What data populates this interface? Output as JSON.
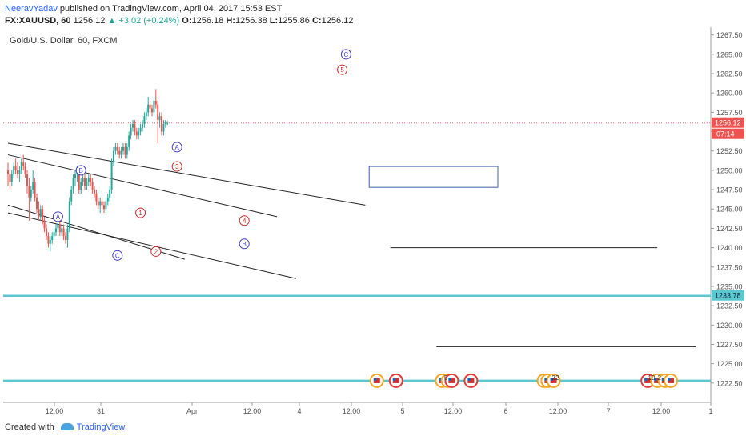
{
  "header": {
    "author": "NeeravYadav",
    "published": "published on TradingView.com, April 04, 2017 15:53 EST",
    "symbol": "FX:XAUUSD, 60",
    "last": "1256.12",
    "change": "▲ +3.02 (+0.24%)",
    "open_label": "O:",
    "open": "1256.18",
    "high_label": "H:",
    "high": "1256.38",
    "low_label": "L:",
    "low": "1255.86",
    "close_label": "C:",
    "close": "1256.12"
  },
  "chart_title": "Gold/U.S. Dollar, 60, FXCM",
  "footer": {
    "created_with": "Created with",
    "brand": "TradingView"
  },
  "chart_data": {
    "type": "candlestick",
    "ylim": [
      1220.0,
      1268.5
    ],
    "yticks": [
      "1267.50",
      "1265.00",
      "1262.50",
      "1260.00",
      "1257.50",
      "1255.00",
      "1252.50",
      "1250.00",
      "1247.50",
      "1245.00",
      "1242.50",
      "1240.00",
      "1237.50",
      "1235.00",
      "1232.50",
      "1230.00",
      "1227.50",
      "1225.00",
      "1222.50"
    ],
    "xticks": [
      "12:00",
      "31",
      "Apr",
      "12:00",
      "4",
      "12:00",
      "5",
      "12:00",
      "6",
      "12:00",
      "7",
      "12:00",
      "1"
    ],
    "last_price_label": "1256.12",
    "countdown_label": "07:14",
    "price_marker_label": "1233.78",
    "candles": [
      [
        1250.0,
        1251.0,
        1248.0,
        1249.5
      ],
      [
        1249.5,
        1250.0,
        1247.5,
        1248.5
      ],
      [
        1248.5,
        1250.0,
        1248.0,
        1249.5
      ],
      [
        1249.5,
        1251.0,
        1249.0,
        1250.5
      ],
      [
        1250.5,
        1251.5,
        1249.5,
        1250.0
      ],
      [
        1250.0,
        1251.0,
        1249.0,
        1249.5
      ],
      [
        1249.5,
        1250.5,
        1248.5,
        1250.0
      ],
      [
        1250.0,
        1251.5,
        1249.5,
        1251.0
      ],
      [
        1251.0,
        1252.0,
        1250.0,
        1250.5
      ],
      [
        1250.5,
        1251.0,
        1249.0,
        1249.5
      ],
      [
        1249.5,
        1250.0,
        1247.0,
        1248.0
      ],
      [
        1248.0,
        1249.0,
        1243.5,
        1246.5
      ],
      [
        1246.5,
        1248.0,
        1246.0,
        1247.5
      ],
      [
        1247.5,
        1250.0,
        1247.0,
        1248.5
      ],
      [
        1248.5,
        1249.0,
        1246.0,
        1246.5
      ],
      [
        1246.5,
        1247.0,
        1244.5,
        1245.0
      ],
      [
        1245.0,
        1246.0,
        1243.5,
        1244.0
      ],
      [
        1244.0,
        1245.5,
        1243.5,
        1245.0
      ],
      [
        1245.0,
        1245.5,
        1243.0,
        1243.5
      ],
      [
        1243.5,
        1244.0,
        1242.0,
        1242.5
      ],
      [
        1242.5,
        1243.0,
        1241.0,
        1241.5
      ],
      [
        1241.5,
        1242.0,
        1240.0,
        1240.5
      ],
      [
        1240.5,
        1241.5,
        1239.5,
        1241.0
      ],
      [
        1241.0,
        1242.0,
        1240.5,
        1241.5
      ],
      [
        1241.5,
        1242.5,
        1241.0,
        1242.0
      ],
      [
        1242.0,
        1243.0,
        1241.5,
        1242.5
      ],
      [
        1242.5,
        1243.5,
        1242.0,
        1243.0
      ],
      [
        1243.0,
        1243.5,
        1241.5,
        1242.0
      ],
      [
        1242.0,
        1243.0,
        1241.5,
        1242.5
      ],
      [
        1242.5,
        1243.0,
        1241.0,
        1241.5
      ],
      [
        1241.5,
        1242.0,
        1240.5,
        1241.0
      ],
      [
        1241.0,
        1243.0,
        1240.0,
        1242.5
      ],
      [
        1242.5,
        1246.5,
        1242.0,
        1246.0
      ],
      [
        1246.0,
        1248.0,
        1245.5,
        1247.5
      ],
      [
        1247.5,
        1249.5,
        1247.0,
        1249.0
      ],
      [
        1249.0,
        1250.0,
        1248.0,
        1249.5
      ],
      [
        1249.5,
        1250.5,
        1248.5,
        1250.0
      ],
      [
        1250.0,
        1250.5,
        1247.0,
        1247.5
      ],
      [
        1247.5,
        1249.0,
        1247.0,
        1248.5
      ],
      [
        1248.5,
        1249.5,
        1248.0,
        1249.0
      ],
      [
        1249.0,
        1249.5,
        1247.5,
        1248.0
      ],
      [
        1248.0,
        1249.0,
        1247.5,
        1248.5
      ],
      [
        1248.5,
        1249.5,
        1248.0,
        1249.0
      ],
      [
        1249.0,
        1249.5,
        1248.0,
        1248.5
      ],
      [
        1248.5,
        1249.0,
        1247.0,
        1247.5
      ],
      [
        1247.5,
        1248.0,
        1246.5,
        1247.0
      ],
      [
        1247.0,
        1247.5,
        1245.5,
        1246.0
      ],
      [
        1246.0,
        1246.5,
        1245.0,
        1245.5
      ],
      [
        1245.5,
        1246.5,
        1244.5,
        1246.0
      ],
      [
        1246.0,
        1246.5,
        1245.0,
        1245.5
      ],
      [
        1245.5,
        1246.0,
        1244.5,
        1245.0
      ],
      [
        1245.0,
        1246.5,
        1244.5,
        1246.0
      ],
      [
        1246.0,
        1247.0,
        1245.5,
        1246.5
      ],
      [
        1246.5,
        1248.0,
        1246.0,
        1247.5
      ],
      [
        1247.5,
        1251.5,
        1247.0,
        1251.0
      ],
      [
        1251.0,
        1253.0,
        1250.5,
        1252.5
      ],
      [
        1252.5,
        1253.5,
        1252.0,
        1253.0
      ],
      [
        1253.0,
        1253.5,
        1252.0,
        1252.5
      ],
      [
        1252.5,
        1253.0,
        1251.5,
        1252.0
      ],
      [
        1252.0,
        1253.0,
        1251.5,
        1252.5
      ],
      [
        1252.5,
        1253.5,
        1252.0,
        1253.0
      ],
      [
        1253.0,
        1253.5,
        1251.5,
        1252.0
      ],
      [
        1252.0,
        1253.5,
        1251.5,
        1253.0
      ],
      [
        1253.0,
        1255.0,
        1252.5,
        1254.5
      ],
      [
        1254.5,
        1256.0,
        1254.0,
        1255.5
      ],
      [
        1255.5,
        1256.5,
        1255.0,
        1256.0
      ],
      [
        1256.0,
        1256.5,
        1254.5,
        1255.0
      ],
      [
        1255.0,
        1255.5,
        1254.0,
        1254.5
      ],
      [
        1254.5,
        1255.5,
        1254.0,
        1255.0
      ],
      [
        1255.0,
        1256.0,
        1254.5,
        1255.5
      ],
      [
        1255.5,
        1256.5,
        1255.0,
        1256.0
      ],
      [
        1256.0,
        1257.5,
        1255.5,
        1257.0
      ],
      [
        1257.0,
        1258.0,
        1256.5,
        1257.5
      ],
      [
        1257.5,
        1259.5,
        1257.0,
        1258.5
      ],
      [
        1258.5,
        1259.0,
        1257.5,
        1258.0
      ],
      [
        1258.0,
        1258.5,
        1257.0,
        1257.5
      ],
      [
        1257.5,
        1259.5,
        1257.0,
        1259.0
      ],
      [
        1259.0,
        1260.5,
        1258.0,
        1258.5
      ],
      [
        1258.5,
        1259.0,
        1253.5,
        1256.5
      ],
      [
        1256.5,
        1257.5,
        1255.5,
        1257.0
      ],
      [
        1257.0,
        1257.5,
        1254.5,
        1255.0
      ],
      [
        1255.0,
        1256.5,
        1254.5,
        1256.0
      ],
      [
        1256.0,
        1256.5,
        1255.5,
        1256.12
      ],
      [
        1256.12,
        1256.38,
        1255.86,
        1256.12
      ]
    ],
    "wave_labels": [
      {
        "text": "B",
        "x": 38,
        "y": 1250.0,
        "color": "blue"
      },
      {
        "text": "A",
        "x": 26,
        "y": 1244.0,
        "color": "blue"
      },
      {
        "text": "C",
        "x": 57,
        "y": 1239.0,
        "color": "blue"
      },
      {
        "text": "1",
        "x": 69,
        "y": 1244.5,
        "color": "red"
      },
      {
        "text": "2",
        "x": 77,
        "y": 1239.5,
        "color": "red"
      },
      {
        "text": "A",
        "x": 88,
        "y": 1253.0,
        "color": "blue"
      },
      {
        "text": "3",
        "x": 88,
        "y": 1250.5,
        "color": "red"
      },
      {
        "text": "4",
        "x": 123,
        "y": 1243.5,
        "color": "red"
      },
      {
        "text": "B",
        "x": 123,
        "y": 1240.5,
        "color": "blue"
      },
      {
        "text": "5",
        "x": 174,
        "y": 1263.0,
        "color": "red"
      },
      {
        "text": "C",
        "x": 176,
        "y": 1265.0,
        "color": "blue"
      }
    ],
    "trend_lines": [
      {
        "x1": 0,
        "y1": 1253.5,
        "x2": 186,
        "y2": 1245.5,
        "color": "#222222"
      },
      {
        "x1": 0,
        "y1": 1252.0,
        "x2": 140,
        "y2": 1244.0,
        "color": "#222222"
      },
      {
        "x1": 0,
        "y1": 1245.5,
        "x2": 92,
        "y2": 1238.5,
        "color": "#222222"
      },
      {
        "x1": 0,
        "y1": 1244.5,
        "x2": 150,
        "y2": 1236.0,
        "color": "#222222"
      },
      {
        "x1": 199,
        "y1": 1240.0,
        "x2": 338,
        "y2": 1240.0,
        "color": "#222222"
      },
      {
        "x1": 223,
        "y1": 1227.2,
        "x2": 358,
        "y2": 1227.2,
        "color": "#222222"
      }
    ],
    "horizontal_levels": [
      {
        "y": 1233.78,
        "color": "#5bc8d1"
      },
      {
        "y": 1222.8,
        "color": "#5bc8d1"
      }
    ],
    "rectangle": {
      "x1": 188,
      "y1": 1250.5,
      "x2": 255,
      "y2": 1247.8,
      "color": "#3f5fa8"
    },
    "event_markers": [
      {
        "x": 192,
        "type": "orange"
      },
      {
        "x": 202,
        "type": "red"
      },
      {
        "x": 226,
        "type": "orange"
      },
      {
        "x": 229,
        "type": "orange"
      },
      {
        "x": 231,
        "type": "red"
      },
      {
        "x": 241,
        "type": "red"
      },
      {
        "x": 279,
        "type": "orange"
      },
      {
        "x": 281,
        "type": "orange"
      },
      {
        "x": 284,
        "type": "orange"
      },
      {
        "x": 333,
        "type": "red"
      },
      {
        "x": 338,
        "type": "orange"
      },
      {
        "x": 342,
        "type": "orange"
      },
      {
        "x": 345,
        "type": "orange"
      }
    ],
    "marker_labels": [
      {
        "x": 228,
        "text": "5"
      },
      {
        "x": 284,
        "text": "2"
      },
      {
        "x": 286,
        "text": "2"
      },
      {
        "x": 335,
        "text": "10"
      },
      {
        "x": 339,
        "text": "2"
      }
    ],
    "colors": {
      "up": "#26a69a",
      "down": "#ef5350",
      "wave_blue": "#3f3fbf",
      "wave_red": "#c62828",
      "level": "#5bc8d1"
    }
  }
}
